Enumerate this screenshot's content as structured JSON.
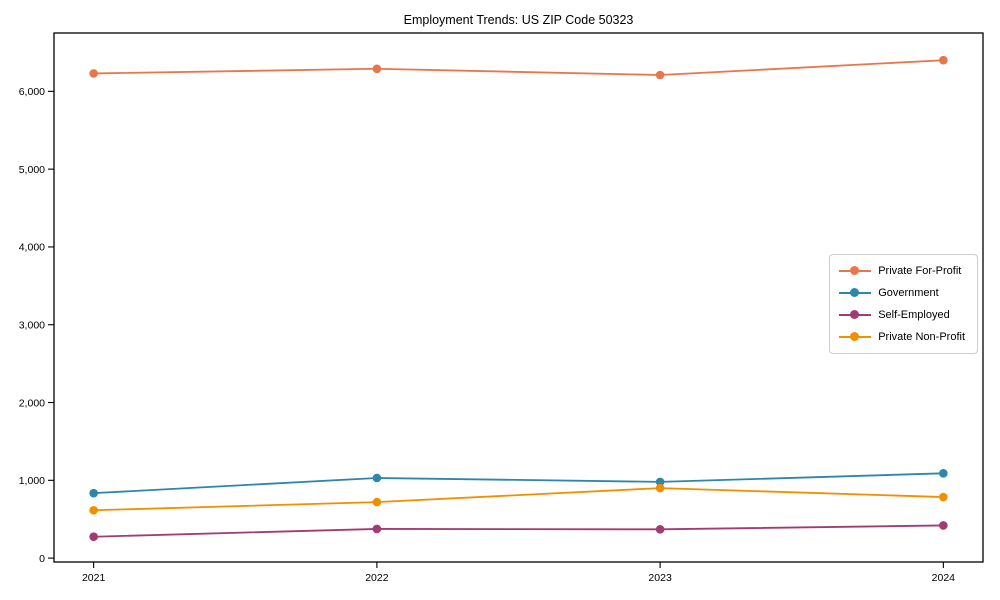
{
  "chart_data": {
    "type": "line",
    "title": "Employment Trends: US ZIP Code 50323",
    "categories": [
      2021,
      2022,
      2023,
      2024
    ],
    "series": [
      {
        "name": "Private For-Profit",
        "color": "#E8764C",
        "values": [
          6230,
          6290,
          6210,
          6400
        ]
      },
      {
        "name": "Government",
        "color": "#2E86AB",
        "values": [
          835,
          1030,
          980,
          1090
        ]
      },
      {
        "name": "Self-Employed",
        "color": "#A23B72",
        "values": [
          275,
          375,
          370,
          420
        ]
      },
      {
        "name": "Private Non-Profit",
        "color": "#F18F01",
        "values": [
          615,
          720,
          900,
          785
        ]
      }
    ],
    "xlabel": "",
    "ylabel": "",
    "xticklabels": [
      "2021",
      "2022",
      "2023",
      "2024"
    ],
    "yticks": [
      0,
      1000,
      2000,
      3000,
      4000,
      5000,
      6000
    ],
    "ytick_format": "thousands-comma",
    "xlim": [
      2020.86,
      2024.14
    ],
    "ylim": [
      -50,
      6750
    ],
    "grid": false,
    "legend_position": "center right",
    "marker": "circle",
    "axis_color": "#000000"
  }
}
